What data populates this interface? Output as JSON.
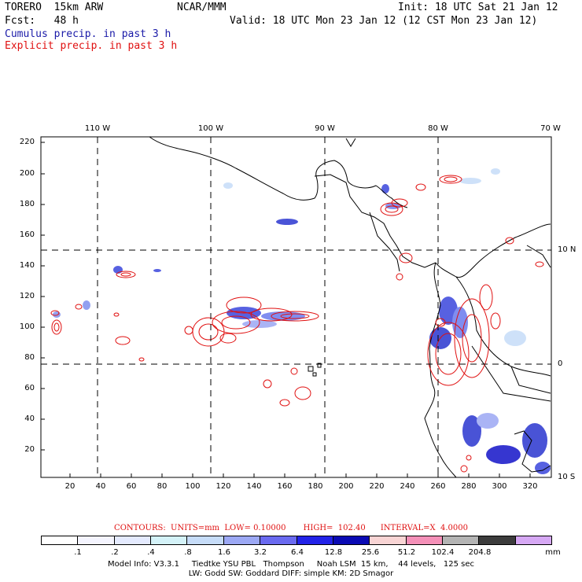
{
  "header": {
    "model": "TORERO  15km ARW",
    "org": "NCAR/MMM",
    "init": "Init: 18 UTC Sat 21 Jan 12",
    "fcst": "Fcst:   48 h",
    "valid": "Valid: 18 UTC Mon 23 Jan 12 (12 CST Mon 23 Jan 12)",
    "cumulus": "Cumulus precip. in past 3 h",
    "explicit": "Explicit precip. in past 3 h"
  },
  "axes": {
    "lon_labels": [
      "110 W",
      "100 W",
      "90 W",
      "80 W",
      "70 W"
    ],
    "lat_labels": [
      "10 N",
      "0",
      "10 S"
    ],
    "y_ticks": [
      "220",
      "200",
      "180",
      "160",
      "140",
      "120",
      "100",
      "80",
      "60",
      "40",
      "20"
    ],
    "x_ticks": [
      "20",
      "40",
      "60",
      "80",
      "100",
      "120",
      "140",
      "160",
      "180",
      "200",
      "220",
      "240",
      "260",
      "280",
      "300",
      "320"
    ]
  },
  "contour_info": "CONTOURS:  UNITS=mm  LOW= 0.10000       HIGH=  102.40      INTERVAL=X  4.0000",
  "colorbar": {
    "colors": [
      "#ffffff",
      "#f4f4fe",
      "#e4eafe",
      "#d4f2f8",
      "#c6dcf8",
      "#9ca8f4",
      "#6a6af0",
      "#2222e8",
      "#0a0ab4",
      "#f8d4d4",
      "#f490b8",
      "#b4b4b4",
      "#3c3c3c",
      "#d6a8f4"
    ],
    "labels": [
      ".1",
      ".2",
      ".4",
      ".8",
      "1.6",
      "3.2",
      "6.4",
      "12.8",
      "25.6",
      "51.2",
      "102.4",
      "204.8"
    ],
    "unit": "mm"
  },
  "footer": {
    "line1": "Model Info: V3.3.1     Tiedtke YSU PBL   Thompson     Noah LSM  15 km,    44 levels,   125 sec",
    "line2": "LW: Godd SW: Goddard DIFF: simple KM: 2D Smagor"
  }
}
